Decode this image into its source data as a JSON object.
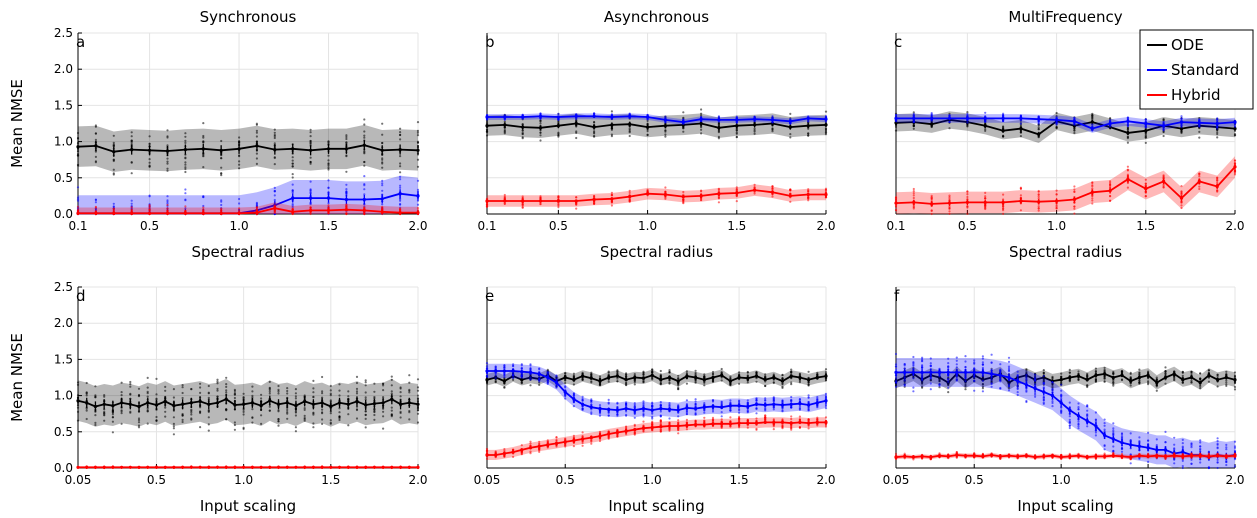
{
  "colors": {
    "ODE": "#000000",
    "Standard": "#0000ff",
    "Hybrid": "#ff0000"
  },
  "legend": {
    "entries": [
      "ODE",
      "Standard",
      "Hybrid"
    ],
    "placement": "top-right"
  },
  "chart_data": [
    {
      "id": "a",
      "type": "line",
      "panel_label": "a",
      "title": "Synchronous",
      "xlabel": "Spectral radius",
      "ylabel": "Mean NMSE",
      "xlim": [
        0.1,
        2.0
      ],
      "ylim": [
        0,
        2.5
      ],
      "xticks": [
        "0.1",
        "0.5",
        "1.0",
        "1.5",
        "2.0"
      ],
      "yticks": [
        "0.0",
        "0.5",
        "1.0",
        "1.5",
        "2.0",
        "2.5"
      ],
      "x": [
        0.1,
        0.2,
        0.3,
        0.4,
        0.5,
        0.6,
        0.7,
        0.8,
        0.9,
        1.0,
        1.1,
        1.2,
        1.3,
        1.4,
        1.5,
        1.6,
        1.7,
        1.8,
        1.9,
        2.0
      ],
      "series": [
        {
          "name": "ODE",
          "mean": [
            0.93,
            0.94,
            0.86,
            0.89,
            0.88,
            0.87,
            0.89,
            0.9,
            0.88,
            0.9,
            0.94,
            0.89,
            0.9,
            0.88,
            0.9,
            0.9,
            0.95,
            0.88,
            0.89,
            0.88
          ],
          "band": 0.28
        },
        {
          "name": "Standard",
          "mean": [
            0.01,
            0.01,
            0.01,
            0.01,
            0.01,
            0.01,
            0.01,
            0.01,
            0.01,
            0.01,
            0.05,
            0.12,
            0.22,
            0.22,
            0.22,
            0.2,
            0.2,
            0.21,
            0.28,
            0.25
          ],
          "band": 0.25
        },
        {
          "name": "Hybrid",
          "mean": [
            0.01,
            0.01,
            0.01,
            0.01,
            0.01,
            0.01,
            0.01,
            0.01,
            0.01,
            0.01,
            0.02,
            0.08,
            0.03,
            0.05,
            0.05,
            0.06,
            0.05,
            0.03,
            0.02,
            0.02
          ],
          "band": 0.08
        }
      ]
    },
    {
      "id": "b",
      "type": "line",
      "panel_label": "b",
      "title": "Asynchronous",
      "xlabel": "Spectral radius",
      "ylabel": "",
      "xlim": [
        0.1,
        2.0
      ],
      "ylim": [
        0,
        2.5
      ],
      "xticks": [
        "0.1",
        "0.5",
        "1.0",
        "1.5",
        "2.0"
      ],
      "yticks": [],
      "x": [
        0.1,
        0.2,
        0.3,
        0.4,
        0.5,
        0.6,
        0.7,
        0.8,
        0.9,
        1.0,
        1.1,
        1.2,
        1.3,
        1.4,
        1.5,
        1.6,
        1.7,
        1.8,
        1.9,
        2.0
      ],
      "series": [
        {
          "name": "ODE",
          "mean": [
            1.22,
            1.23,
            1.2,
            1.19,
            1.22,
            1.25,
            1.2,
            1.23,
            1.24,
            1.2,
            1.22,
            1.23,
            1.25,
            1.19,
            1.22,
            1.23,
            1.25,
            1.2,
            1.22,
            1.23
          ],
          "band": 0.14
        },
        {
          "name": "Standard",
          "mean": [
            1.34,
            1.34,
            1.34,
            1.35,
            1.34,
            1.35,
            1.35,
            1.34,
            1.35,
            1.34,
            1.3,
            1.27,
            1.31,
            1.3,
            1.3,
            1.31,
            1.3,
            1.28,
            1.32,
            1.31
          ],
          "band": 0.04
        },
        {
          "name": "Hybrid",
          "mean": [
            0.18,
            0.18,
            0.18,
            0.18,
            0.18,
            0.18,
            0.2,
            0.21,
            0.24,
            0.28,
            0.27,
            0.24,
            0.25,
            0.28,
            0.29,
            0.33,
            0.3,
            0.25,
            0.27,
            0.27
          ],
          "band": 0.08
        }
      ]
    },
    {
      "id": "c",
      "type": "line",
      "panel_label": "c",
      "title": "MultiFrequency",
      "xlabel": "Spectral radius",
      "ylabel": "",
      "xlim": [
        0.1,
        2.0
      ],
      "ylim": [
        0,
        2.5
      ],
      "xticks": [
        "0.1",
        "0.5",
        "1.0",
        "1.5",
        "2.0"
      ],
      "yticks": [],
      "x": [
        0.1,
        0.2,
        0.3,
        0.4,
        0.5,
        0.6,
        0.7,
        0.8,
        0.9,
        1.0,
        1.1,
        1.2,
        1.3,
        1.4,
        1.5,
        1.6,
        1.7,
        1.8,
        1.9,
        2.0
      ],
      "series": [
        {
          "name": "ODE",
          "mean": [
            1.26,
            1.27,
            1.24,
            1.3,
            1.27,
            1.22,
            1.15,
            1.18,
            1.1,
            1.28,
            1.22,
            1.27,
            1.2,
            1.12,
            1.15,
            1.22,
            1.18,
            1.22,
            1.2,
            1.18
          ],
          "band": 0.12
        },
        {
          "name": "Standard",
          "mean": [
            1.32,
            1.32,
            1.32,
            1.32,
            1.32,
            1.32,
            1.32,
            1.32,
            1.31,
            1.3,
            1.28,
            1.18,
            1.25,
            1.28,
            1.25,
            1.22,
            1.27,
            1.26,
            1.25,
            1.27
          ],
          "band": 0.06
        },
        {
          "name": "Hybrid",
          "mean": [
            0.15,
            0.16,
            0.14,
            0.15,
            0.16,
            0.16,
            0.16,
            0.18,
            0.17,
            0.18,
            0.2,
            0.3,
            0.32,
            0.48,
            0.35,
            0.45,
            0.22,
            0.45,
            0.38,
            0.65
          ],
          "band": 0.15
        }
      ]
    },
    {
      "id": "d",
      "type": "line",
      "panel_label": "d",
      "title": "",
      "xlabel": "Input scaling",
      "ylabel": "Mean NMSE",
      "xlim": [
        0.05,
        2.0
      ],
      "ylim": [
        0,
        2.5
      ],
      "xticks": [
        "0.05",
        "0.5",
        "1.0",
        "1.5",
        "2.0"
      ],
      "yticks": [
        "0.0",
        "0.5",
        "1.0",
        "1.5",
        "2.0",
        "2.5"
      ],
      "x": [
        0.05,
        0.1,
        0.15,
        0.2,
        0.25,
        0.3,
        0.35,
        0.4,
        0.45,
        0.5,
        0.55,
        0.6,
        0.65,
        0.7,
        0.75,
        0.8,
        0.85,
        0.9,
        0.95,
        1.0,
        1.05,
        1.1,
        1.15,
        1.2,
        1.25,
        1.3,
        1.35,
        1.4,
        1.45,
        1.5,
        1.55,
        1.6,
        1.65,
        1.7,
        1.75,
        1.8,
        1.85,
        1.9,
        1.95,
        2.0
      ],
      "series": [
        {
          "name": "ODE",
          "mean": [
            0.93,
            0.9,
            0.85,
            0.88,
            0.86,
            0.9,
            0.88,
            0.85,
            0.9,
            0.87,
            0.92,
            0.86,
            0.88,
            0.9,
            0.92,
            0.88,
            0.9,
            0.95,
            0.87,
            0.88,
            0.9,
            0.86,
            0.93,
            0.88,
            0.9,
            0.86,
            0.92,
            0.88,
            0.9,
            0.85,
            0.9,
            0.88,
            0.92,
            0.87,
            0.89,
            0.9,
            0.95,
            0.88,
            0.9,
            0.88
          ],
          "band": 0.28
        },
        {
          "name": "Hybrid",
          "mean": [
            0.01,
            0.01,
            0.01,
            0.01,
            0.01,
            0.01,
            0.01,
            0.01,
            0.01,
            0.01,
            0.01,
            0.01,
            0.01,
            0.01,
            0.01,
            0.01,
            0.01,
            0.01,
            0.01,
            0.01,
            0.01,
            0.01,
            0.01,
            0.01,
            0.01,
            0.01,
            0.01,
            0.01,
            0.01,
            0.01,
            0.01,
            0.01,
            0.01,
            0.01,
            0.01,
            0.01,
            0.01,
            0.01,
            0.01,
            0.01
          ],
          "band": 0.01
        }
      ]
    },
    {
      "id": "e",
      "type": "line",
      "panel_label": "e",
      "title": "",
      "xlabel": "Input scaling",
      "ylabel": "",
      "xlim": [
        0.05,
        2.0
      ],
      "ylim": [
        0,
        2.5
      ],
      "xticks": [
        "0.05",
        "0.5",
        "1.0",
        "1.5",
        "2.0"
      ],
      "yticks": [],
      "x": [
        0.05,
        0.1,
        0.15,
        0.2,
        0.25,
        0.3,
        0.35,
        0.4,
        0.45,
        0.5,
        0.55,
        0.6,
        0.65,
        0.7,
        0.75,
        0.8,
        0.85,
        0.9,
        0.95,
        1.0,
        1.05,
        1.1,
        1.15,
        1.2,
        1.25,
        1.3,
        1.35,
        1.4,
        1.45,
        1.5,
        1.55,
        1.6,
        1.65,
        1.7,
        1.75,
        1.8,
        1.85,
        1.9,
        1.95,
        2.0
      ],
      "series": [
        {
          "name": "ODE",
          "mean": [
            1.22,
            1.25,
            1.2,
            1.27,
            1.22,
            1.25,
            1.23,
            1.28,
            1.2,
            1.25,
            1.22,
            1.27,
            1.24,
            1.2,
            1.25,
            1.27,
            1.22,
            1.25,
            1.24,
            1.28,
            1.22,
            1.25,
            1.2,
            1.27,
            1.25,
            1.22,
            1.25,
            1.28,
            1.2,
            1.25,
            1.24,
            1.27,
            1.22,
            1.25,
            1.2,
            1.27,
            1.25,
            1.22,
            1.25,
            1.27
          ],
          "band": 0.08
        },
        {
          "name": "Standard",
          "mean": [
            1.34,
            1.34,
            1.34,
            1.34,
            1.33,
            1.32,
            1.3,
            1.25,
            1.18,
            1.05,
            0.95,
            0.88,
            0.84,
            0.82,
            0.81,
            0.8,
            0.82,
            0.8,
            0.82,
            0.8,
            0.82,
            0.81,
            0.8,
            0.83,
            0.82,
            0.84,
            0.85,
            0.84,
            0.86,
            0.86,
            0.85,
            0.88,
            0.87,
            0.88,
            0.87,
            0.88,
            0.89,
            0.87,
            0.9,
            0.93
          ],
          "band": 0.1
        },
        {
          "name": "Hybrid",
          "mean": [
            0.18,
            0.18,
            0.2,
            0.22,
            0.25,
            0.28,
            0.3,
            0.32,
            0.34,
            0.36,
            0.38,
            0.4,
            0.42,
            0.44,
            0.47,
            0.49,
            0.51,
            0.53,
            0.55,
            0.56,
            0.57,
            0.58,
            0.58,
            0.59,
            0.6,
            0.6,
            0.61,
            0.61,
            0.61,
            0.62,
            0.62,
            0.62,
            0.63,
            0.63,
            0.63,
            0.62,
            0.63,
            0.62,
            0.63,
            0.63
          ],
          "band": 0.07
        }
      ]
    },
    {
      "id": "f",
      "type": "line",
      "panel_label": "f",
      "title": "",
      "xlabel": "Input scaling",
      "ylabel": "",
      "xlim": [
        0.05,
        2.0
      ],
      "ylim": [
        0,
        2.5
      ],
      "xticks": [
        "0.05",
        "0.5",
        "1.0",
        "1.5",
        "2.0"
      ],
      "yticks": [],
      "x": [
        0.05,
        0.1,
        0.15,
        0.2,
        0.25,
        0.3,
        0.35,
        0.4,
        0.45,
        0.5,
        0.55,
        0.6,
        0.65,
        0.7,
        0.75,
        0.8,
        0.85,
        0.9,
        0.95,
        1.0,
        1.05,
        1.1,
        1.15,
        1.2,
        1.25,
        1.3,
        1.35,
        1.4,
        1.45,
        1.5,
        1.55,
        1.6,
        1.65,
        1.7,
        1.75,
        1.8,
        1.85,
        1.9,
        1.95,
        2.0
      ],
      "series": [
        {
          "name": "ODE",
          "mean": [
            1.2,
            1.25,
            1.3,
            1.22,
            1.28,
            1.25,
            1.18,
            1.3,
            1.2,
            1.28,
            1.22,
            1.25,
            1.3,
            1.18,
            1.25,
            1.28,
            1.22,
            1.25,
            1.2,
            1.22,
            1.25,
            1.27,
            1.22,
            1.28,
            1.3,
            1.25,
            1.28,
            1.2,
            1.25,
            1.28,
            1.18,
            1.25,
            1.3,
            1.22,
            1.25,
            1.18,
            1.28,
            1.22,
            1.25,
            1.22
          ],
          "band": 0.1
        },
        {
          "name": "Standard",
          "mean": [
            1.32,
            1.32,
            1.32,
            1.32,
            1.32,
            1.32,
            1.32,
            1.32,
            1.32,
            1.32,
            1.32,
            1.3,
            1.28,
            1.25,
            1.2,
            1.15,
            1.1,
            1.05,
            1.0,
            0.9,
            0.8,
            0.72,
            0.65,
            0.58,
            0.45,
            0.4,
            0.35,
            0.32,
            0.3,
            0.28,
            0.25,
            0.25,
            0.2,
            0.22,
            0.18,
            0.18,
            0.15,
            0.18,
            0.16,
            0.18
          ],
          "band": 0.2
        },
        {
          "name": "Hybrid",
          "mean": [
            0.15,
            0.16,
            0.15,
            0.16,
            0.15,
            0.17,
            0.16,
            0.18,
            0.17,
            0.17,
            0.16,
            0.18,
            0.16,
            0.17,
            0.16,
            0.17,
            0.15,
            0.16,
            0.17,
            0.15,
            0.16,
            0.17,
            0.15,
            0.16,
            0.16,
            0.17,
            0.16,
            0.15,
            0.17,
            0.16,
            0.17,
            0.16,
            0.17,
            0.16,
            0.17,
            0.17,
            0.16,
            0.17,
            0.16,
            0.17
          ],
          "band": 0.03
        }
      ]
    }
  ]
}
